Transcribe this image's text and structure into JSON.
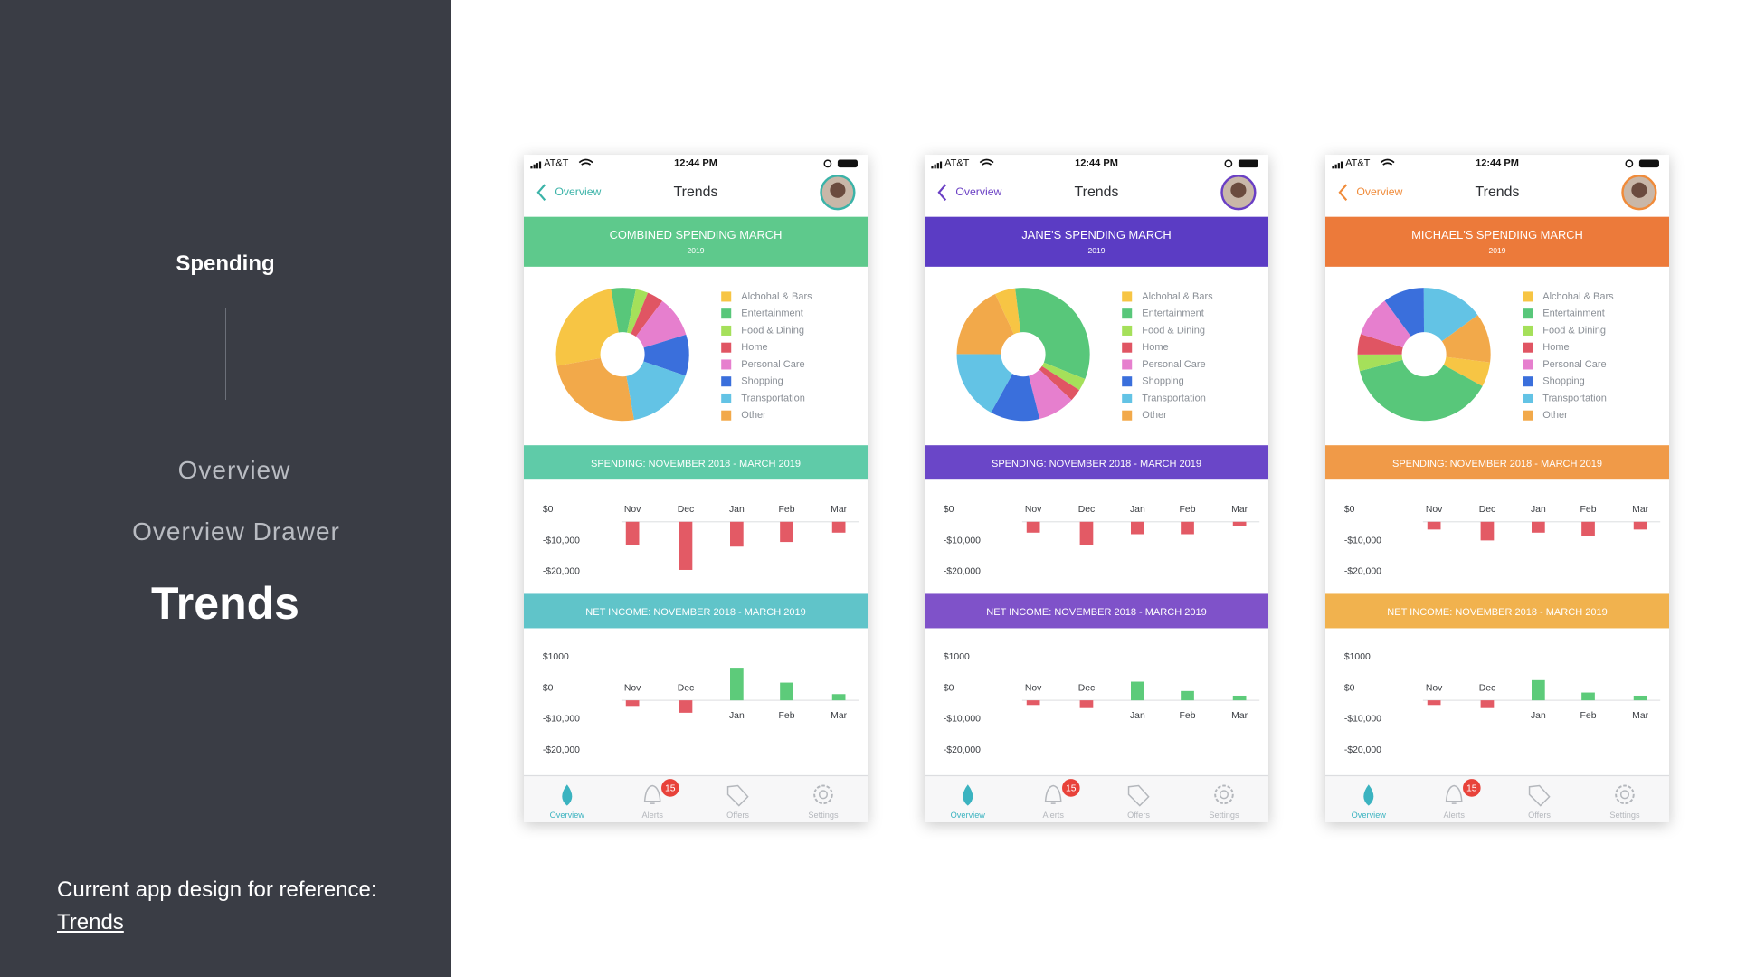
{
  "sidebar": {
    "section": "Spending",
    "nav": [
      "Overview",
      "Overview Drawer",
      "Trends"
    ],
    "note": "Current app design for reference:",
    "link": "Trends"
  },
  "phones": [
    {
      "status": {
        "carrier": "AT&T",
        "time": "12:44 PM"
      },
      "nav": {
        "back": "Overview",
        "title": "Trends"
      },
      "colors": {
        "accent": "#3bb3a8",
        "header": "#5ec98c",
        "spending_band": "#5fcba8",
        "income_band": "#60c4c9"
      },
      "header": {
        "title": "COMBINED SPENDING MARCH",
        "year": "2019"
      },
      "pie": {
        "categories": [
          "Alchohal & Bars",
          "Entertainment",
          "Food & Dining",
          "Home",
          "Personal Care",
          "Shopping",
          "Transportation",
          "Other"
        ],
        "values": [
          25,
          6,
          3,
          4,
          10,
          10,
          17,
          25
        ],
        "colors": [
          "#f7c544",
          "#58c77a",
          "#a5e05a",
          "#e05563",
          "#e67fce",
          "#3a6fdc",
          "#63c3e5",
          "#f2a94a"
        ]
      },
      "spending": {
        "title": "SPENDING: NOVEMBER 2018 - MARCH 2019",
        "categories": [
          "Nov",
          "Dec",
          "Jan",
          "Feb",
          "Mar"
        ],
        "values": [
          -7500,
          -15500,
          -8000,
          -6500,
          -3500
        ],
        "ylim": [
          -20000,
          0
        ],
        "yticks": [
          {
            "value": 0,
            "label": "$0"
          },
          {
            "value": -10000,
            "label": "-$10,000"
          },
          {
            "value": -20000,
            "label": "-$20,000"
          }
        ]
      },
      "income": {
        "title": "NET INCOME: NOVEMBER 2018 - MARCH 2019",
        "categories": [
          "Nov",
          "Dec",
          "Jan",
          "Feb",
          "Mar"
        ],
        "values": [
          -1800,
          -4000,
          1050,
          570,
          200
        ],
        "ylim": [
          -20000,
          1000
        ],
        "yticks": [
          {
            "value": 1000,
            "label": "$1000"
          },
          {
            "value": 0,
            "label": "$0"
          },
          {
            "value": -10000,
            "label": "-$10,000"
          },
          {
            "value": -20000,
            "label": "-$20,000"
          }
        ]
      },
      "tabs": [
        {
          "label": "Overview"
        },
        {
          "label": "Alerts",
          "badge": 15
        },
        {
          "label": "Offers"
        },
        {
          "label": "Settings"
        }
      ]
    },
    {
      "status": {
        "carrier": "AT&T",
        "time": "12:44 PM"
      },
      "nav": {
        "back": "Overview",
        "title": "Trends"
      },
      "colors": {
        "accent": "#6a3fc4",
        "header": "#5b3cc4",
        "spending_band": "#6a46c8",
        "income_band": "#7f52c9"
      },
      "header": {
        "title": "JANE'S SPENDING MARCH",
        "year": "2019"
      },
      "pie": {
        "categories": [
          "Alchohal & Bars",
          "Entertainment",
          "Food & Dining",
          "Home",
          "Personal Care",
          "Shopping",
          "Transportation",
          "Other"
        ],
        "values": [
          5,
          33,
          3,
          3,
          9,
          12,
          17,
          18
        ],
        "colors": [
          "#f7c544",
          "#58c77a",
          "#a5e05a",
          "#e05563",
          "#e67fce",
          "#3a6fdc",
          "#63c3e5",
          "#f2a94a"
        ]
      },
      "spending": {
        "title": "SPENDING: NOVEMBER 2018 - MARCH 2019",
        "categories": [
          "Nov",
          "Dec",
          "Jan",
          "Feb",
          "Mar"
        ],
        "values": [
          -3500,
          -7500,
          -4000,
          -4000,
          -1500
        ],
        "ylim": [
          -20000,
          0
        ],
        "yticks": [
          {
            "value": 0,
            "label": "$0"
          },
          {
            "value": -10000,
            "label": "-$10,000"
          },
          {
            "value": -20000,
            "label": "-$20,000"
          }
        ]
      },
      "income": {
        "title": "NET INCOME: NOVEMBER 2018 - MARCH 2019",
        "categories": [
          "Nov",
          "Dec",
          "Jan",
          "Feb",
          "Mar"
        ],
        "values": [
          -1500,
          -2500,
          600,
          300,
          150
        ],
        "ylim": [
          -20000,
          1000
        ],
        "yticks": [
          {
            "value": 1000,
            "label": "$1000"
          },
          {
            "value": 0,
            "label": "$0"
          },
          {
            "value": -10000,
            "label": "-$10,000"
          },
          {
            "value": -20000,
            "label": "-$20,000"
          }
        ]
      },
      "tabs": [
        {
          "label": "Overview"
        },
        {
          "label": "Alerts",
          "badge": 15
        },
        {
          "label": "Offers"
        },
        {
          "label": "Settings"
        }
      ]
    },
    {
      "status": {
        "carrier": "AT&T",
        "time": "12:44 PM"
      },
      "nav": {
        "back": "Overview",
        "title": "Trends"
      },
      "colors": {
        "accent": "#f08b3a",
        "header": "#ec7a3a",
        "spending_band": "#f09a48",
        "income_band": "#f1b24e"
      },
      "header": {
        "title": "MICHAEL'S SPENDING MARCH",
        "year": "2019"
      },
      "pie": {
        "categories": [
          "Alchohal & Bars",
          "Entertainment",
          "Food & Dining",
          "Home",
          "Personal Care",
          "Shopping",
          "Transportation",
          "Other"
        ],
        "values": [
          6,
          38,
          4,
          5,
          10,
          10,
          15,
          12
        ],
        "colors": [
          "#f7c544",
          "#58c77a",
          "#a5e05a",
          "#e05563",
          "#e67fce",
          "#3a6fdc",
          "#63c3e5",
          "#f2a94a"
        ]
      },
      "spending": {
        "title": "SPENDING: NOVEMBER 2018 - MARCH 2019",
        "categories": [
          "Nov",
          "Dec",
          "Jan",
          "Feb",
          "Mar"
        ],
        "values": [
          -2500,
          -6000,
          -3500,
          -4500,
          -2500
        ],
        "ylim": [
          -20000,
          0
        ],
        "yticks": [
          {
            "value": 0,
            "label": "$0"
          },
          {
            "value": -10000,
            "label": "-$10,000"
          },
          {
            "value": -20000,
            "label": "-$20,000"
          }
        ]
      },
      "income": {
        "title": "NET INCOME: NOVEMBER 2018 - MARCH 2019",
        "categories": [
          "Nov",
          "Dec",
          "Jan",
          "Feb",
          "Mar"
        ],
        "values": [
          -1500,
          -2500,
          650,
          250,
          150
        ],
        "ylim": [
          -20000,
          1000
        ],
        "yticks": [
          {
            "value": 1000,
            "label": "$1000"
          },
          {
            "value": 0,
            "label": "$0"
          },
          {
            "value": -10000,
            "label": "-$10,000"
          },
          {
            "value": -20000,
            "label": "-$20,000"
          }
        ]
      },
      "tabs": [
        {
          "label": "Overview"
        },
        {
          "label": "Alerts",
          "badge": 15
        },
        {
          "label": "Offers"
        },
        {
          "label": "Settings"
        }
      ]
    }
  ]
}
